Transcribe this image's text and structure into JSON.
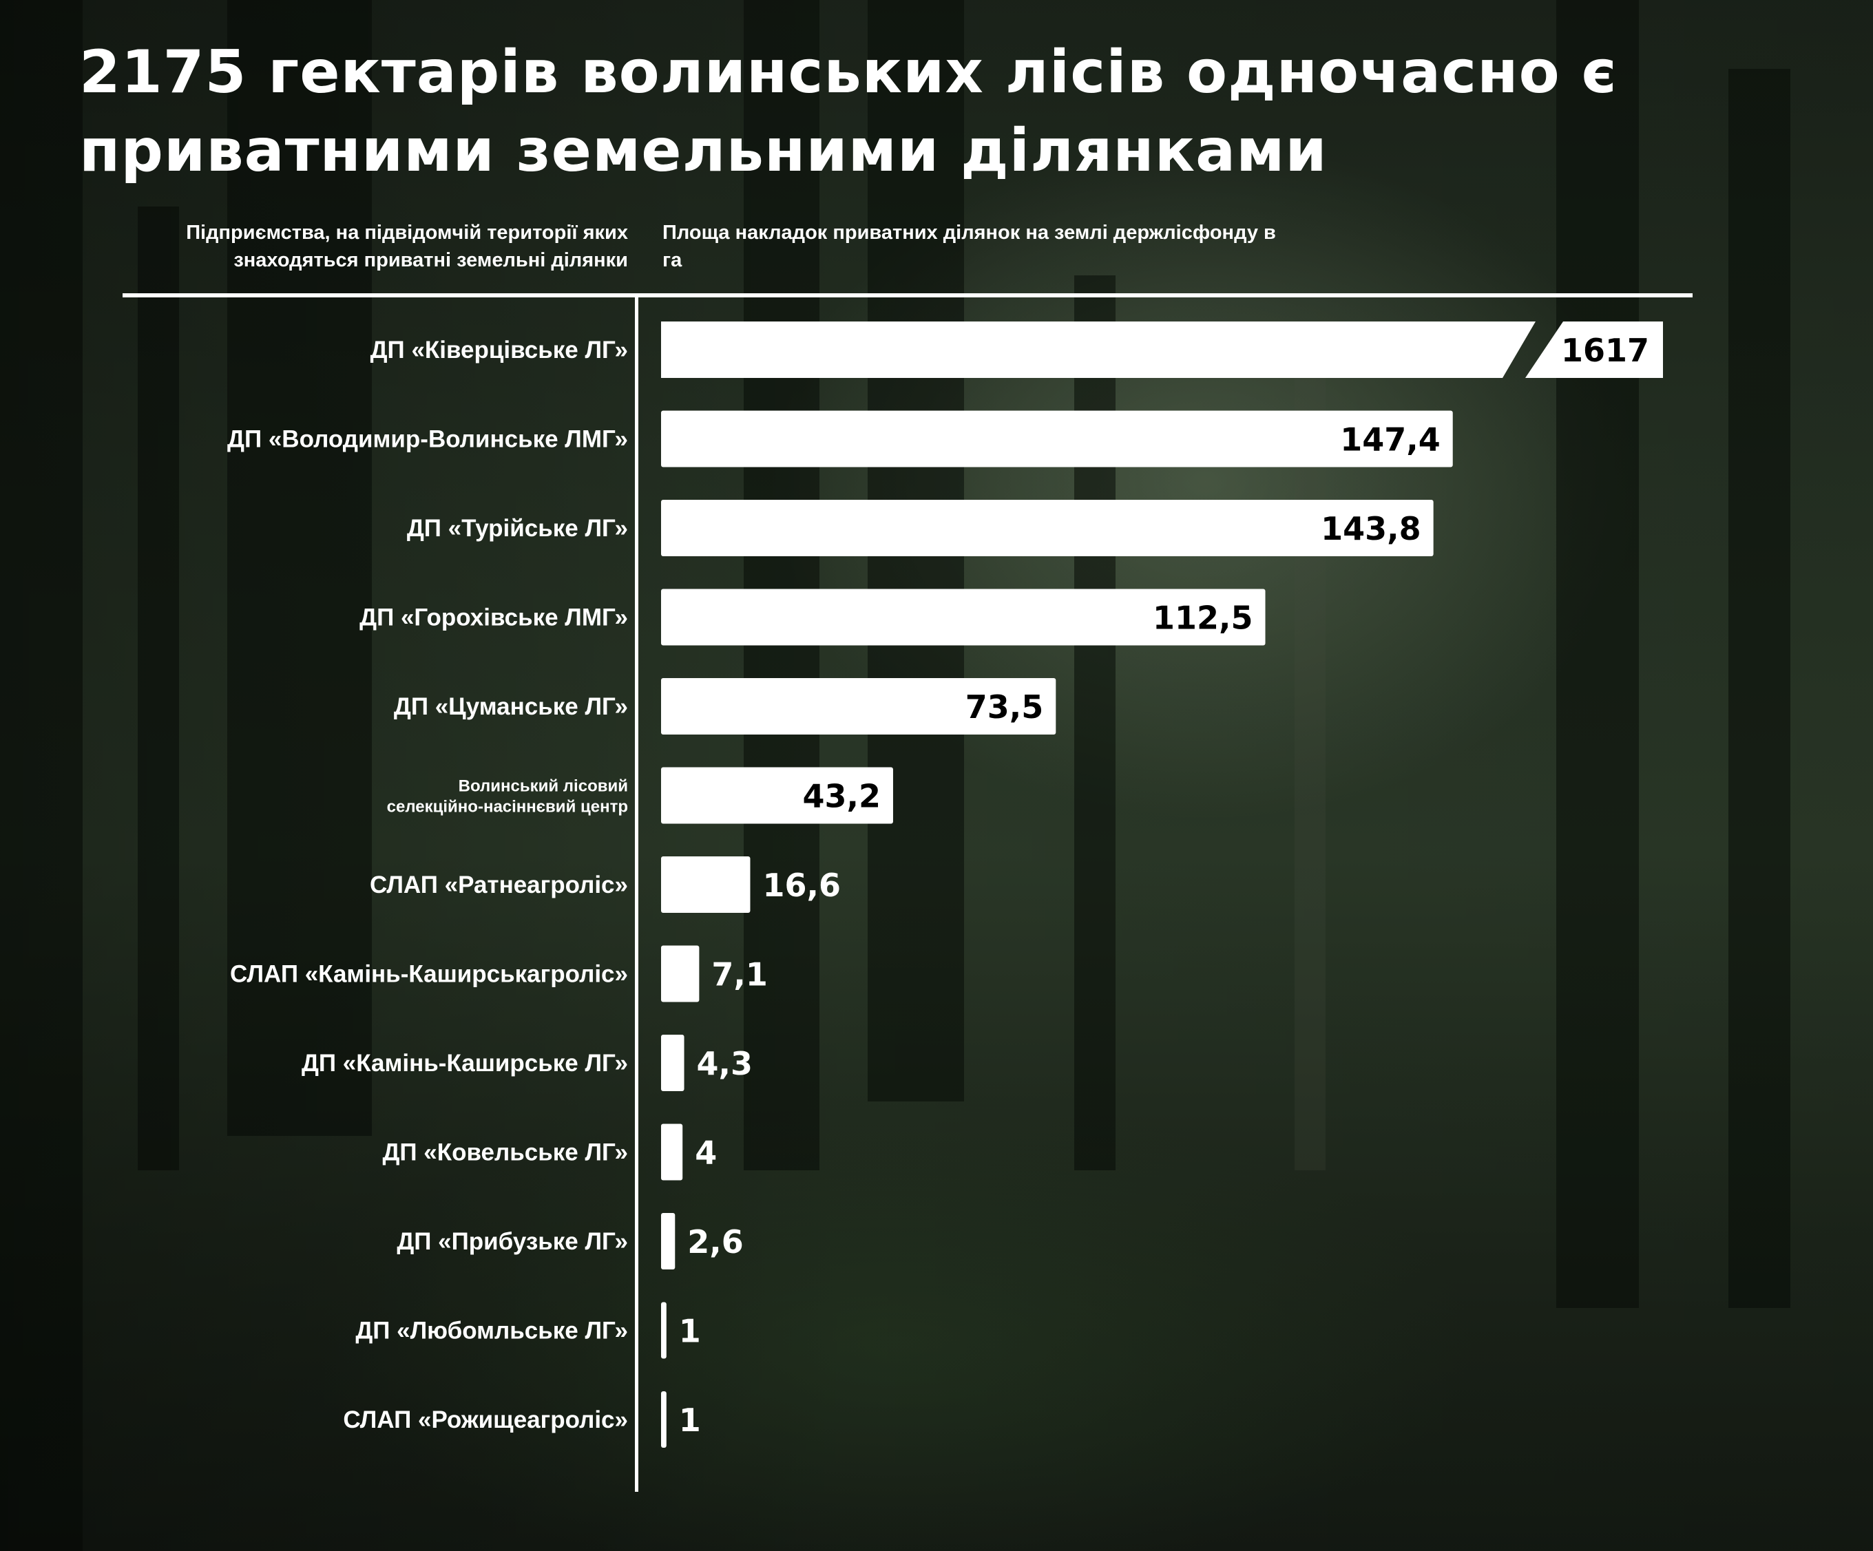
{
  "title": "2175 гектарів волинських лісів одночасно є приватними земельними ділянками",
  "left_header": "Підприємства, на підвідомчій території яких знаходяться приватні земельні ділянки",
  "right_header": "Площа накладок приватних ділянок на землі держлісфонду в га",
  "chart_data": {
    "type": "bar",
    "orientation": "horizontal",
    "axis_break_on_first_bar": true,
    "categories": [
      "ДП «Ківерцівське ЛГ»",
      "ДП «Володимир-Волинське ЛМГ»",
      "ДП «Турійське ЛГ»",
      "ДП «Горохівське ЛМГ»",
      "ДП «Цуманське ЛГ»",
      "Волинський лісовий селекційно-насіннєвий центр",
      "СЛАП «Ратнеагроліс»",
      "СЛАП «Камінь-Каширськагроліс»",
      "ДП «Камінь-Каширське ЛГ»",
      "ДП «Ковельське ЛГ»",
      "ДП «Прибузьке ЛГ»",
      "ДП «Любомльське ЛГ»",
      "СЛАП «Рожищеагроліс»"
    ],
    "values": [
      1617,
      147.4,
      143.8,
      112.5,
      73.5,
      43.2,
      16.6,
      7.1,
      4.3,
      4,
      2.6,
      1,
      1
    ],
    "value_labels": [
      "1617",
      "147,4",
      "143,8",
      "112,5",
      "73,5",
      "43,2",
      "16,6",
      "7,1",
      "4,3",
      "4",
      "2,6",
      "1",
      "1"
    ],
    "bar_color": "#ffffff",
    "label_inside_color": "#000000",
    "label_outside_color": "#ffffff"
  }
}
